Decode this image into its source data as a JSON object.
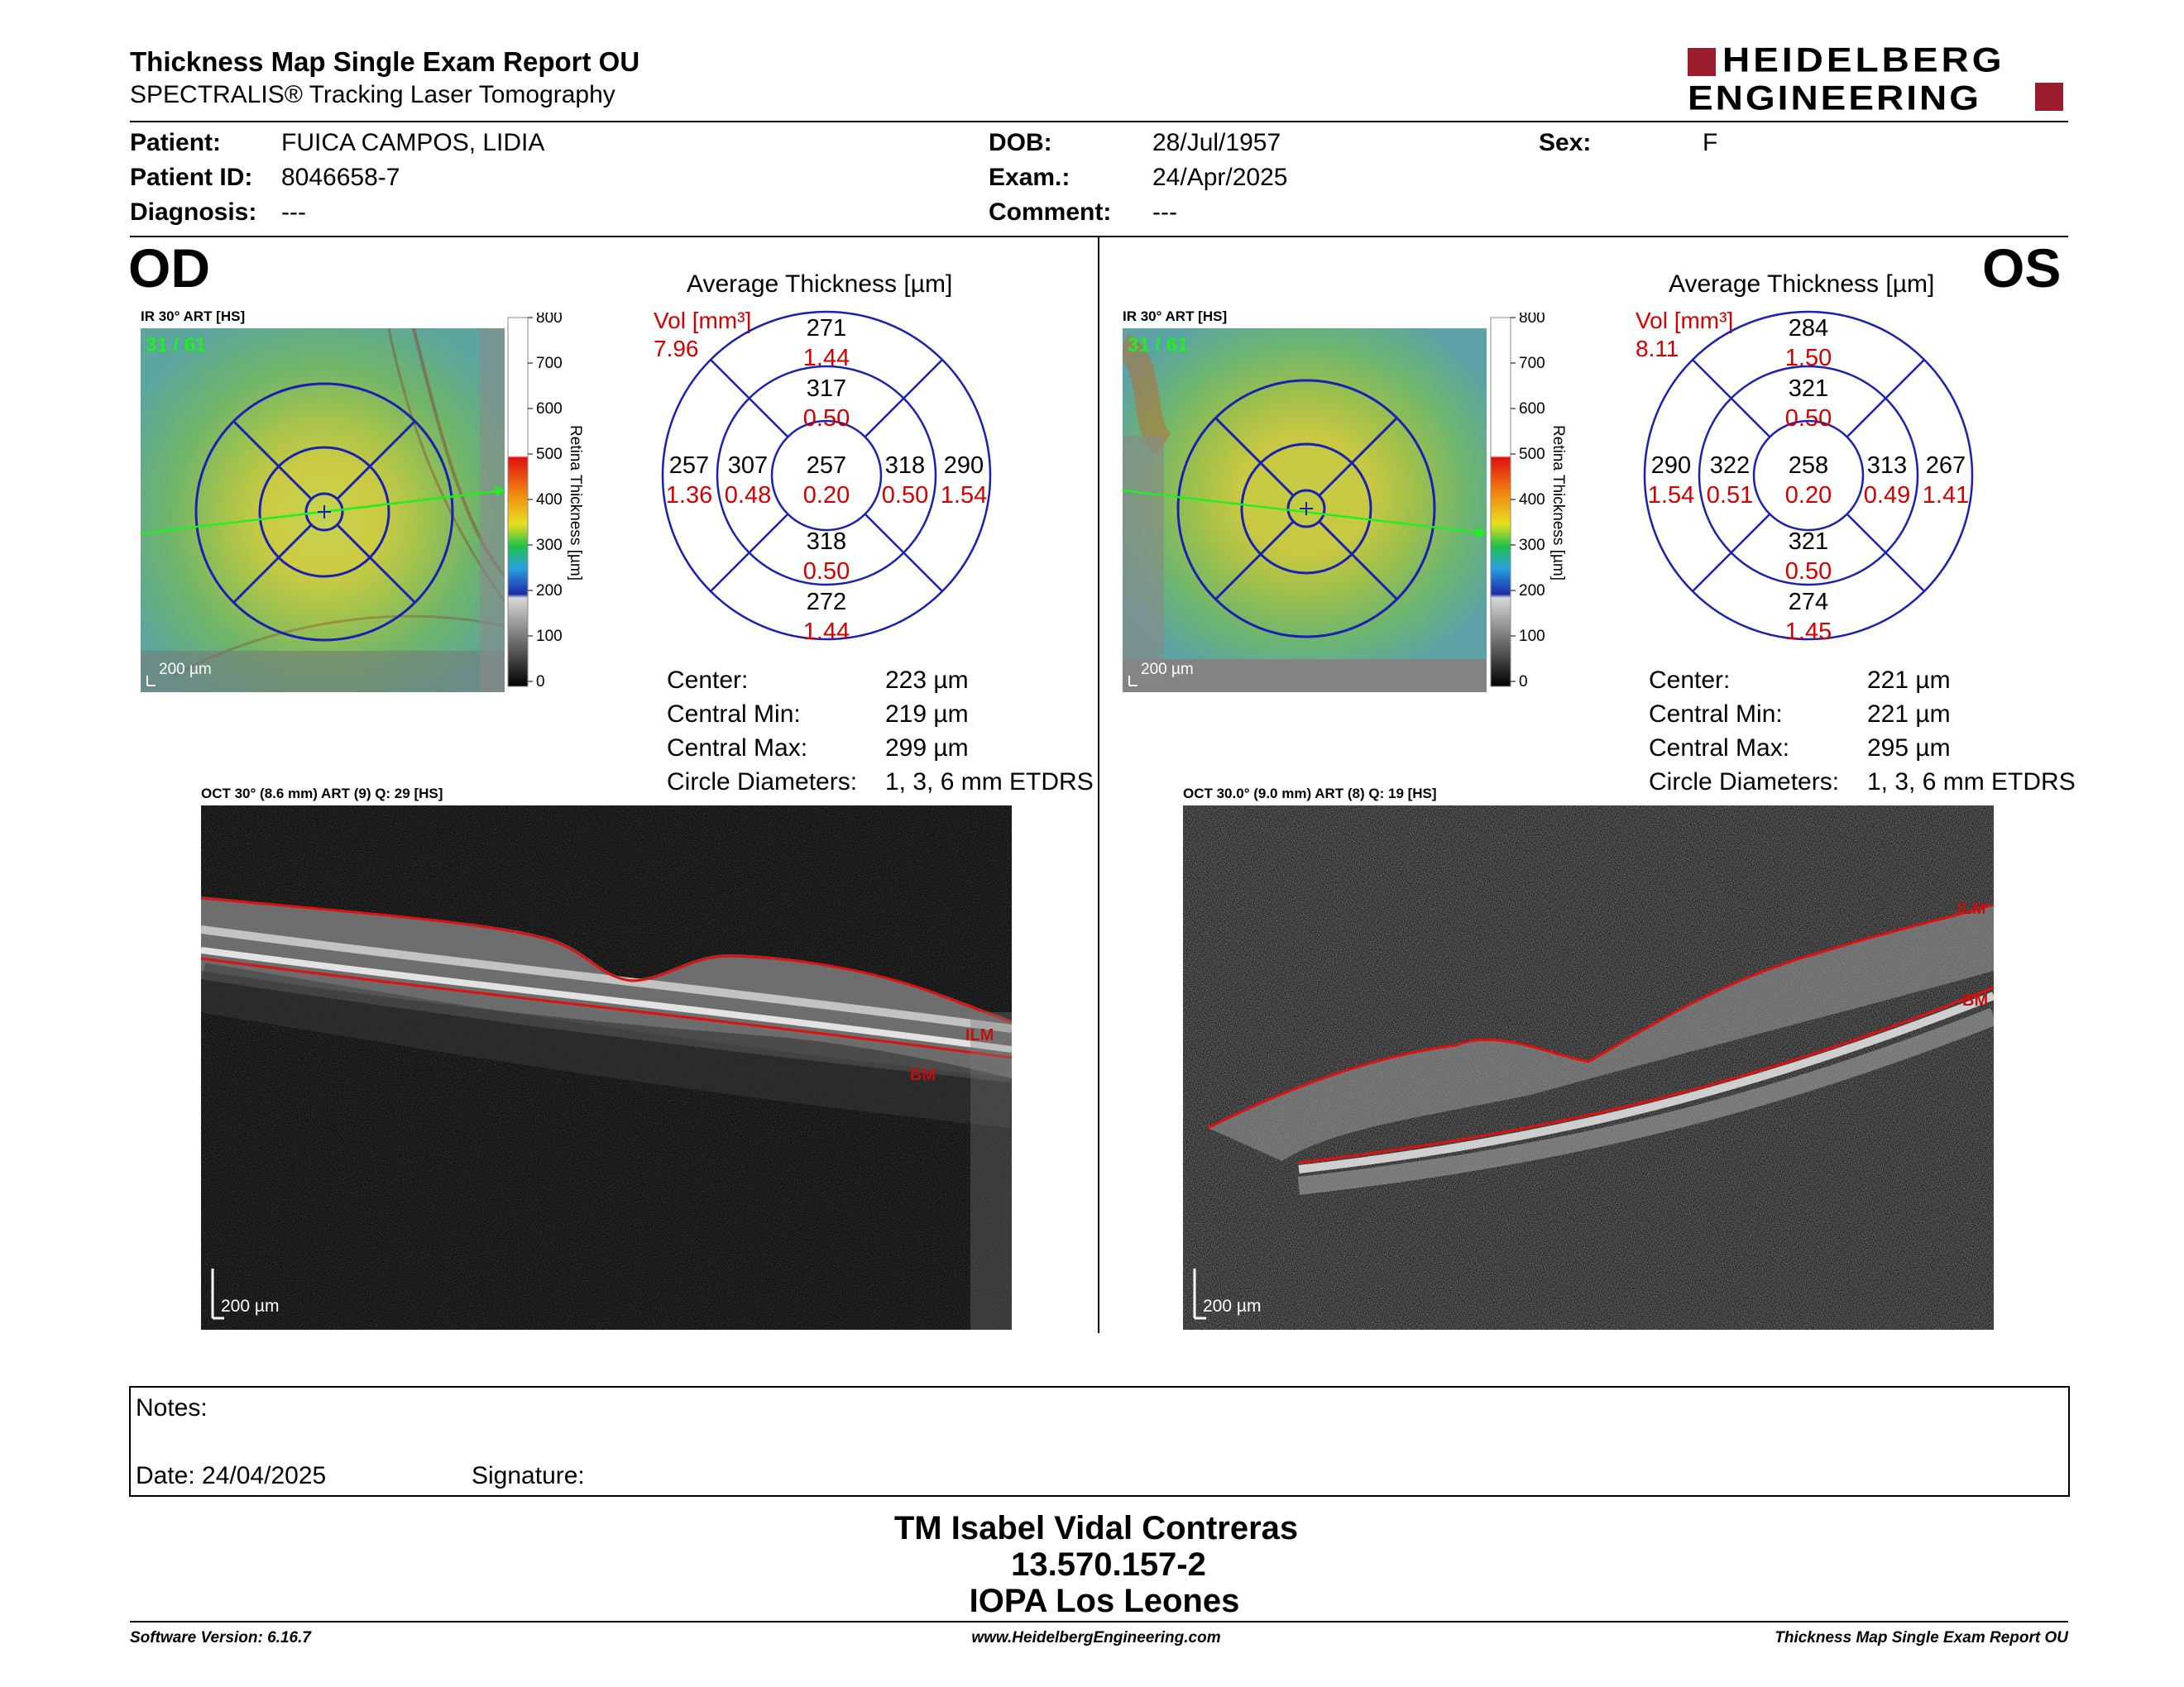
{
  "header": {
    "title": "Thickness Map Single Exam Report OU",
    "subtitle": "SPECTRALIS® Tracking Laser Tomography",
    "logo_line1": "HEIDELBERG",
    "logo_line2": "ENGINEERING"
  },
  "patient": {
    "patient_label": "Patient:",
    "patient_value": "FUICA CAMPOS, LIDIA",
    "id_label": "Patient ID:",
    "id_value": "8046658-7",
    "diagnosis_label": "Diagnosis:",
    "diagnosis_value": "---",
    "dob_label": "DOB:",
    "dob_value": "28/Jul/1957",
    "exam_label": "Exam.:",
    "exam_value": "24/Apr/2025",
    "comment_label": "Comment:",
    "comment_value": "---",
    "sex_label": "Sex:",
    "sex_value": "F"
  },
  "colorbar": {
    "ticks": [
      "800",
      "700",
      "600",
      "500",
      "400",
      "300",
      "200",
      "100",
      "0"
    ],
    "label": "Retina Thickness [µm]"
  },
  "od": {
    "eye": "OD",
    "ir_label": "IR 30° ART [HS]",
    "ir_counter": "31 / 61",
    "scale": "200 µm",
    "chart_title": "Average Thickness [µm]",
    "vol_label": "Vol [mm³]",
    "vol_value": "7.96",
    "etdrs": {
      "center": {
        "t": "257",
        "v": "0.20"
      },
      "inner_sup": {
        "t": "317",
        "v": "0.50"
      },
      "inner_inf": {
        "t": "318",
        "v": "0.50"
      },
      "inner_left": {
        "t": "307",
        "v": "0.48"
      },
      "inner_right": {
        "t": "318",
        "v": "0.50"
      },
      "outer_sup": {
        "t": "271",
        "v": "1.44"
      },
      "outer_inf": {
        "t": "272",
        "v": "1.44"
      },
      "outer_left": {
        "t": "257",
        "v": "1.36"
      },
      "outer_right": {
        "t": "290",
        "v": "1.54"
      }
    },
    "stats": {
      "center_label": "Center:",
      "center_value": "223 µm",
      "min_label": "Central Min:",
      "min_value": "219 µm",
      "max_label": "Central Max:",
      "max_value": "299 µm",
      "diam_label": "Circle Diameters:",
      "diam_value": "1, 3, 6 mm ETDRS"
    },
    "oct_label": "OCT 30° (8.6 mm) ART (9) Q: 29 [HS]",
    "ilm": "ILM",
    "bm": "BM",
    "oct_scale": "200 µm"
  },
  "os": {
    "eye": "OS",
    "ir_label": "IR 30° ART [HS]",
    "ir_counter": "31 / 61",
    "scale": "200 µm",
    "chart_title": "Average Thickness [µm]",
    "vol_label": "Vol [mm³]",
    "vol_value": "8.11",
    "etdrs": {
      "center": {
        "t": "258",
        "v": "0.20"
      },
      "inner_sup": {
        "t": "321",
        "v": "0.50"
      },
      "inner_inf": {
        "t": "321",
        "v": "0.50"
      },
      "inner_left": {
        "t": "322",
        "v": "0.51"
      },
      "inner_right": {
        "t": "313",
        "v": "0.49"
      },
      "outer_sup": {
        "t": "284",
        "v": "1.50"
      },
      "outer_inf": {
        "t": "274",
        "v": "1.45"
      },
      "outer_left": {
        "t": "290",
        "v": "1.54"
      },
      "outer_right": {
        "t": "267",
        "v": "1.41"
      }
    },
    "stats": {
      "center_label": "Center:",
      "center_value": "221 µm",
      "min_label": "Central Min:",
      "min_value": "221 µm",
      "max_label": "Central Max:",
      "max_value": "295 µm",
      "diam_label": "Circle Diameters:",
      "diam_value": "1, 3, 6 mm ETDRS"
    },
    "oct_label": "OCT 30.0° (9.0 mm) ART (8) Q: 19 [HS]",
    "ilm": "ILM",
    "bm": "BM",
    "oct_scale": "200 µm"
  },
  "notes": {
    "notes_label": "Notes:",
    "date_label": "Date: 24/04/2025",
    "signature_label": "Signature:"
  },
  "signature_block": {
    "name": "TM Isabel Vidal Contreras",
    "id": "13.570.157-2",
    "org": "IOPA Los Leones"
  },
  "footer": {
    "software": "Software Version: 6.16.7",
    "url": "www.HeidelbergEngineering.com",
    "report": "Thickness Map Single Exam Report OU"
  }
}
